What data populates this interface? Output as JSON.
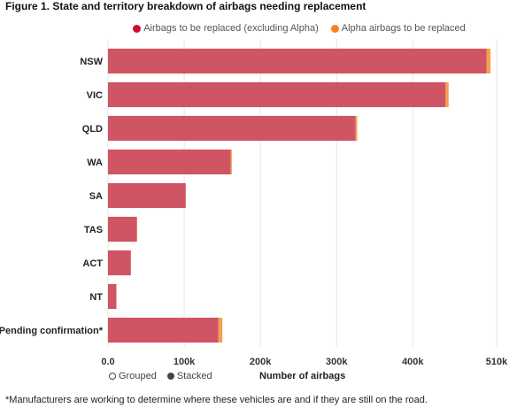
{
  "figure": {
    "title": "Figure 1. State and territory breakdown of airbags needing replacement",
    "footnote": "*Manufacturers are working to determine where these vehicles are and if they are still on the road."
  },
  "legend": [
    {
      "label": "Airbags to be replaced (excluding Alpha)",
      "color": "#c8102e"
    },
    {
      "label": "Alpha airbags to be replaced",
      "color": "#f5821f"
    }
  ],
  "toggle": {
    "grouped_label": "Grouped",
    "stacked_label": "Stacked",
    "selected": "Stacked"
  },
  "colors": {
    "main_bar": "#cf5464",
    "alpha_bar": "#f5a04a",
    "grid": "#e6e6e6"
  },
  "chart_data": {
    "type": "bar",
    "orientation": "horizontal",
    "stacked": true,
    "categories": [
      "NSW",
      "VIC",
      "QLD",
      "WA",
      "SA",
      "TAS",
      "ACT",
      "NT",
      "Pending confirmation*"
    ],
    "series": [
      {
        "name": "Airbags to be replaced (excluding Alpha)",
        "values": [
          497000,
          443000,
          325000,
          161000,
          102000,
          38000,
          30000,
          11000,
          145000
        ]
      },
      {
        "name": "Alpha airbags to be replaced",
        "values": [
          5000,
          4000,
          2000,
          1500,
          300,
          200,
          150,
          100,
          5000
        ]
      }
    ],
    "xlabel": "Number of airbags",
    "ylabel": "",
    "xlim": [
      0,
      510000
    ],
    "xticks": [
      0,
      100000,
      200000,
      300000,
      400000,
      510000
    ],
    "xtick_labels": [
      "0.0",
      "100k",
      "200k",
      "300k",
      "400k",
      "510k"
    ],
    "grid": true
  }
}
